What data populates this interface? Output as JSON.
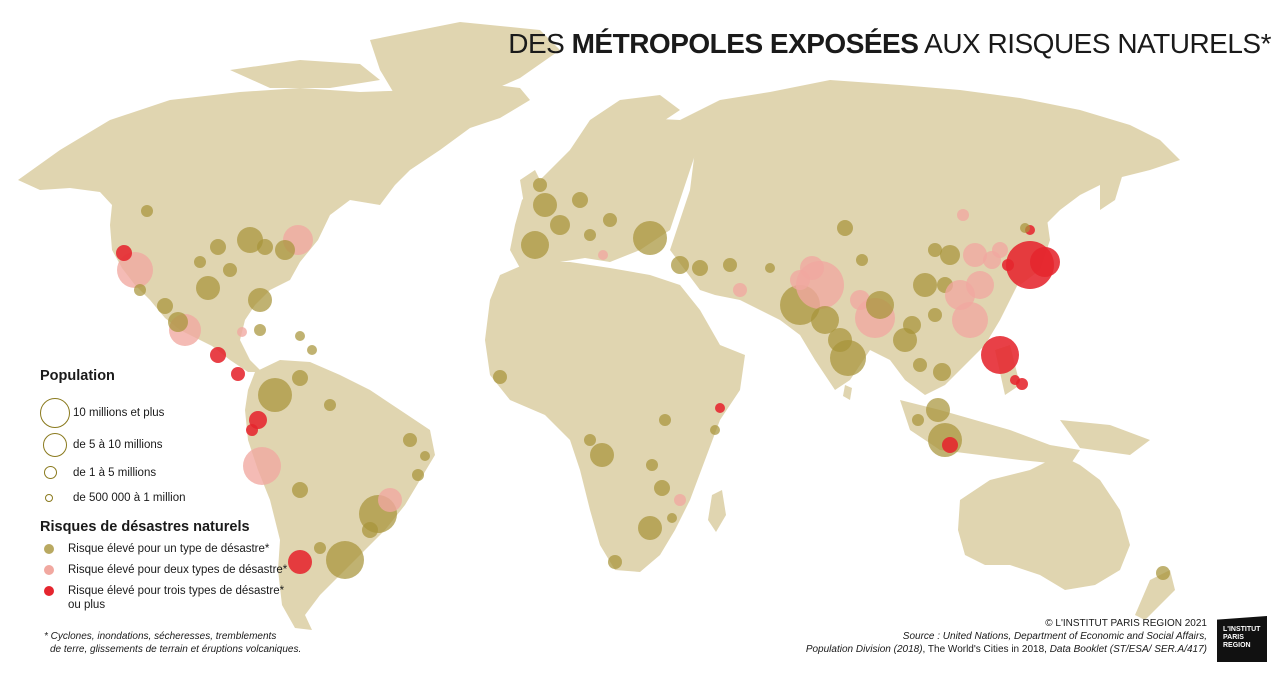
{
  "title": {
    "pre": "DES ",
    "bold": "MÉTROPOLES EXPOSÉES",
    "post": " AUX RISQUES NATURELS*"
  },
  "legend": {
    "population_title": "Population",
    "sizes": [
      "10 millions et plus",
      "de 5 à 10 millions",
      "de 1 à 5 millions",
      "de 500 000 à 1 million"
    ],
    "risk_title": "Risques de désastres naturels",
    "risks": [
      {
        "label": "Risque élevé pour un type de désastre*",
        "color": "#a8943a"
      },
      {
        "label": "Risque élevé pour deux types de désastre*",
        "color": "#f1a8a0"
      },
      {
        "label": "Risque élevé pour trois types de désastre*",
        "label2": "ou plus",
        "color": "#e5252e"
      }
    ]
  },
  "footnote": {
    "line1": "* Cyclones, inondations, sécheresses, tremblements",
    "line2": "de terre, glissements de terrain et éruptions volcaniques."
  },
  "credits": {
    "copyright": "© L'INSTITUT PARIS REGION 2021",
    "source1": "Source : United Nations, Department of Economic and Social Affairs,",
    "source2a": "Population Division (2018)",
    "source2b": ", The World's Cities in 2018, ",
    "source2c": "Data Booklet (ST/ESA/ SER.A/417)"
  },
  "logo": {
    "line1": "L'INSTITUT",
    "line2": "PARIS",
    "line3": "REGION"
  },
  "colors": {
    "land": "#e0d5b0",
    "risk1": "#a8943a",
    "risk2": "#f1a8a0",
    "risk3": "#e5252e"
  }
}
